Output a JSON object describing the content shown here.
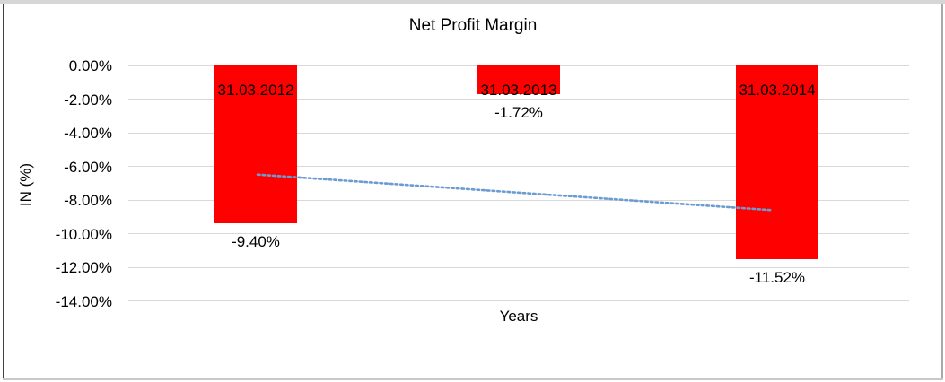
{
  "chart_data": {
    "type": "bar",
    "title": "Net Profit Margin",
    "xlabel": "Years",
    "ylabel": "IN (%)",
    "categories": [
      "31.03.2012",
      "31.03.2013",
      "31.03.2014"
    ],
    "values": [
      -9.4,
      -1.72,
      -11.52
    ],
    "data_labels": [
      "-9.40%",
      "-1.72%",
      "-11.52%"
    ],
    "yticks": [
      "0.00%",
      "-2.00%",
      "-4.00%",
      "-6.00%",
      "-8.00%",
      "-10.00%",
      "-12.00%",
      "-14.00%"
    ],
    "ylim": [
      -14,
      0
    ],
    "ytick_step": 2,
    "grid": true,
    "legend": false,
    "bar_color": "#ff0000",
    "gridline_color": "#d9d9d9",
    "text_color": "#000000",
    "trendline": {
      "type": "linear",
      "style": "dotted",
      "color": "#6c9bd2",
      "start_value": -6.49,
      "end_value": -8.61
    }
  }
}
